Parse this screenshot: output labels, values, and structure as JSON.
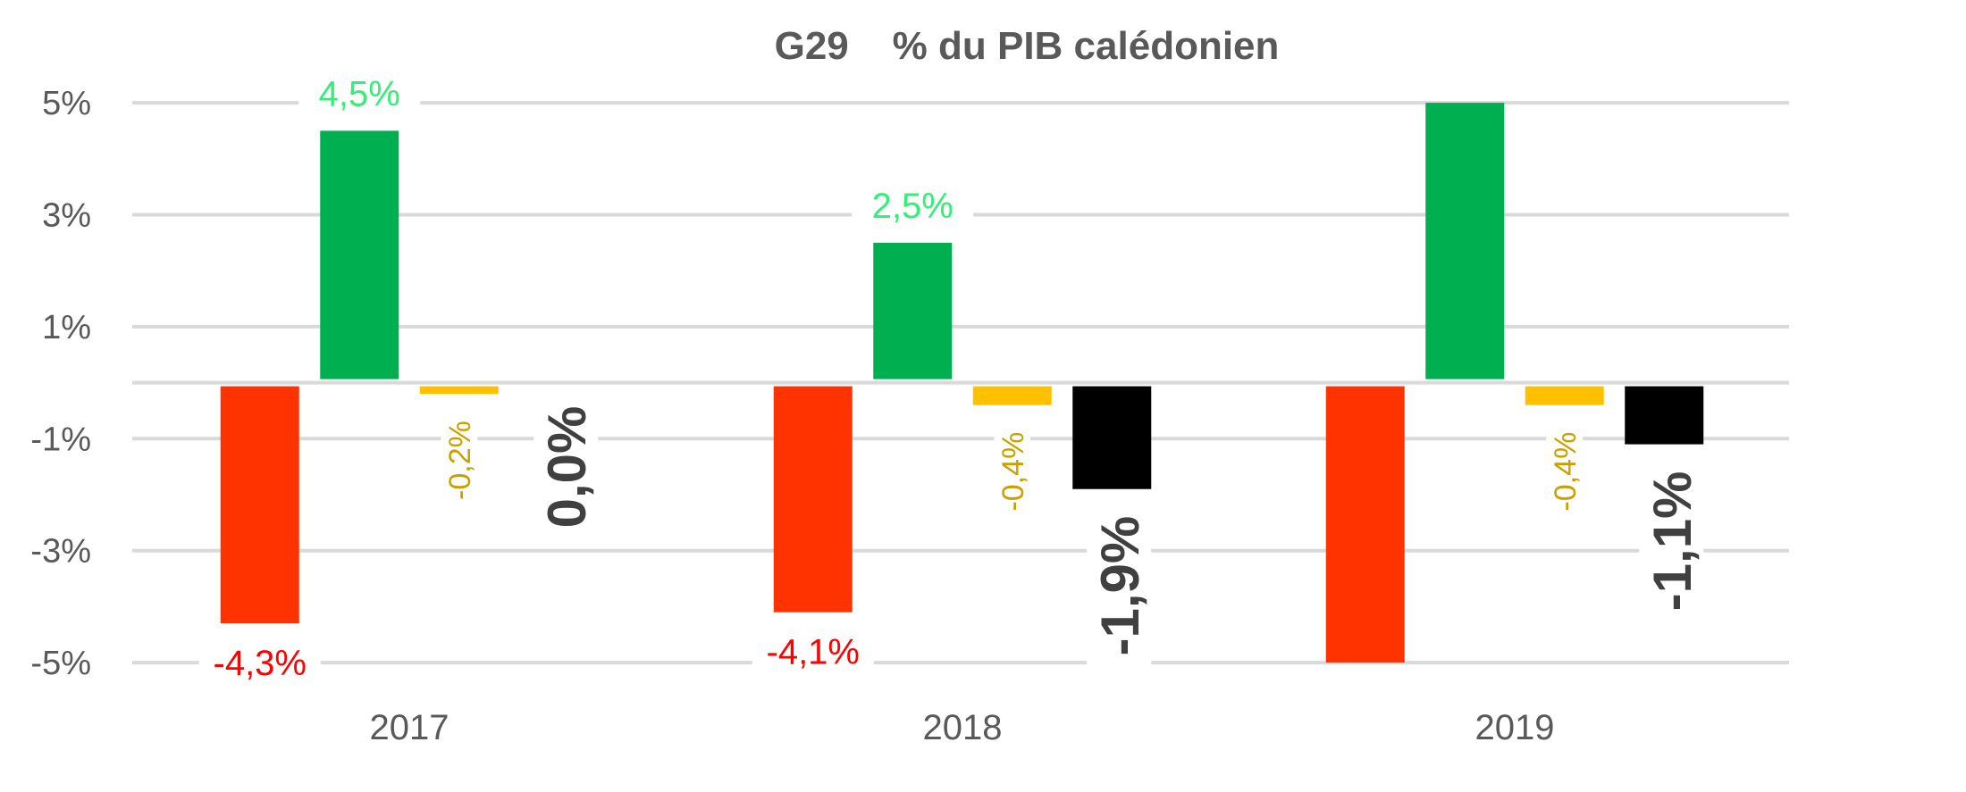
{
  "chart_data": {
    "type": "bar",
    "title": "G29    % du PIB calédonien",
    "xlabel": "",
    "ylabel": "",
    "ylim": [
      -5,
      5
    ],
    "yticks": [
      5,
      3,
      1,
      -1,
      -3,
      -5
    ],
    "ytick_labels": [
      "5%",
      "3%",
      "1%",
      "-1%",
      "-3%",
      "-5%"
    ],
    "grid": true,
    "categories": [
      "2017",
      "2018",
      "2019"
    ],
    "series": [
      {
        "name": "series-red",
        "color": "#FF3300",
        "label_color": "#FF0000",
        "label_style": "below",
        "values": [
          -4.3,
          -4.1,
          -5
        ],
        "labels": [
          "-4,3%",
          "-4,1%",
          ""
        ]
      },
      {
        "name": "series-green",
        "color": "#00B050",
        "label_color": "#33EE77",
        "label_style": "above",
        "values": [
          4.5,
          2.5,
          5
        ],
        "labels": [
          "4,5%",
          "2,5%",
          ""
        ]
      },
      {
        "name": "series-yellow",
        "color": "#FFC000",
        "label_color": "#C9A000",
        "label_style": "rotated-small",
        "values": [
          -0.2,
          -0.4,
          -0.4
        ],
        "labels": [
          "-0,2%",
          "-0,4%",
          "-0,4%"
        ]
      },
      {
        "name": "series-black",
        "color": "#000000",
        "label_color": "#404040",
        "label_style": "rotated-large",
        "values": [
          0.0,
          -1.9,
          -1.1
        ],
        "labels": [
          "0,0%",
          "-1,9%",
          "-1,1%"
        ]
      }
    ]
  }
}
